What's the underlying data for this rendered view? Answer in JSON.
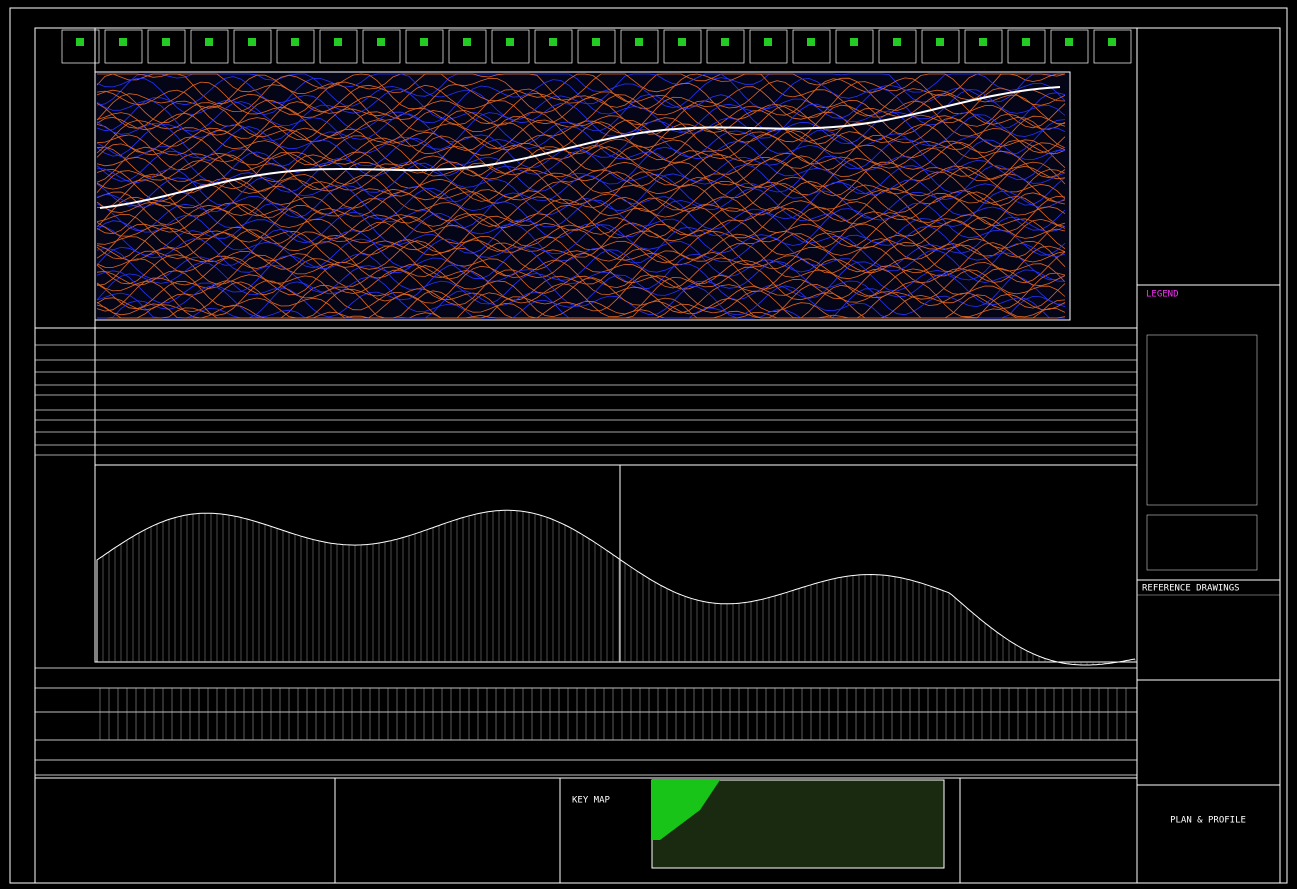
{
  "header": {
    "sheet_title": "PLAN & PROFILE"
  },
  "reference": {
    "title": "REFERENCE DRAWINGS"
  },
  "key_map": {
    "label": "KEY MAP"
  },
  "legend": {
    "title": "LEGEND"
  }
}
